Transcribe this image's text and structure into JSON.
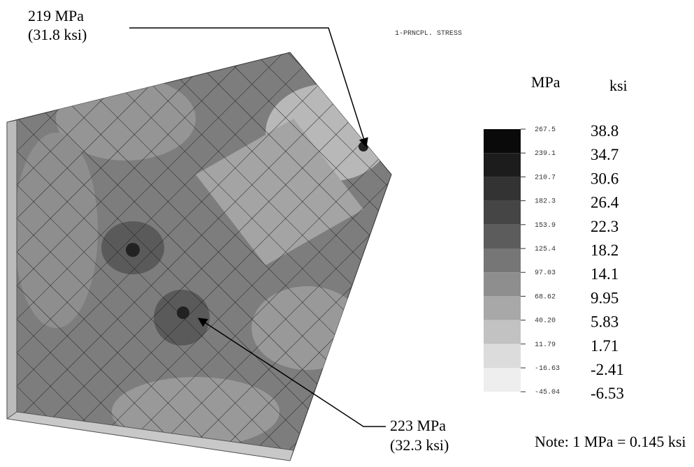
{
  "header": {
    "title": "1-PRNCPL. STRESS"
  },
  "annotations": [
    {
      "lines": [
        "219 MPa",
        "(31.8 ksi)"
      ]
    },
    {
      "lines": [
        "223 MPa",
        "(32.3 ksi)"
      ]
    }
  ],
  "legend": {
    "units": [
      "MPa",
      "ksi"
    ],
    "mpa": [
      "267.5",
      "239.1",
      "210.7",
      "182.3",
      "153.9",
      "125.4",
      "97.03",
      "68.62",
      "40.20",
      "11.79",
      "-16.63",
      "-45.04"
    ],
    "ksi": [
      "38.8",
      "34.7",
      "30.6",
      "26.4",
      "22.3",
      "18.2",
      "14.1",
      "9.95",
      "5.83",
      "1.71",
      "-2.41",
      "-6.53"
    ]
  },
  "note": "Note: 1 MPa = 0.145 ksi"
}
